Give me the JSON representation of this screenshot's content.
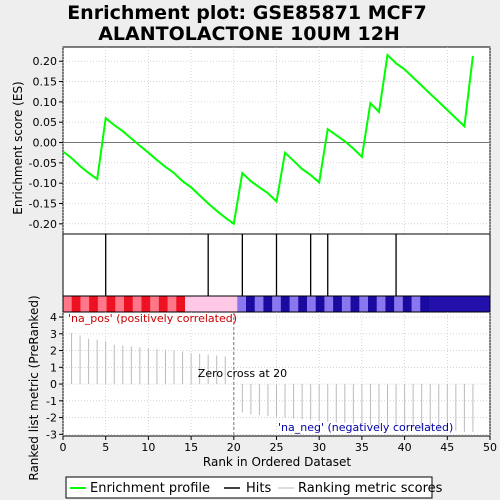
{
  "chart_data": {
    "type": "line",
    "title_lines": [
      "Enrichment plot: GSE85871 MCF7",
      "ALANTOLACTONE 10UM 12H"
    ],
    "top_panel": {
      "ylabel": "Enrichment score (ES)",
      "ylim": [
        -0.225,
        0.235
      ],
      "yticks": [
        0.2,
        0.15,
        0.1,
        0.05,
        0.0,
        -0.05,
        -0.1,
        -0.15,
        -0.2
      ],
      "ytick_labels": [
        "0.20",
        "0.15",
        "0.10",
        "0.05",
        "0.00",
        "-0.05",
        "-0.10",
        "-0.15",
        "-0.20"
      ],
      "series": [
        {
          "name": "Enrichment profile",
          "color": "#00ff00",
          "x": [
            0,
            1,
            2,
            3,
            4,
            5,
            6,
            7,
            8,
            9,
            10,
            11,
            12,
            13,
            14,
            15,
            16,
            17,
            18,
            19,
            20,
            21,
            22,
            23,
            24,
            25,
            26,
            27,
            28,
            29,
            30,
            31,
            32,
            33,
            34,
            35,
            36,
            37,
            38,
            39,
            40,
            41,
            42,
            43,
            44,
            45,
            46,
            47,
            48
          ],
          "y": [
            -0.022,
            -0.038,
            -0.058,
            -0.075,
            -0.09,
            0.06,
            0.043,
            0.028,
            0.01,
            -0.008,
            -0.025,
            -0.043,
            -0.06,
            -0.075,
            -0.095,
            -0.11,
            -0.13,
            -0.15,
            -0.168,
            -0.185,
            -0.2,
            -0.075,
            -0.095,
            -0.11,
            -0.125,
            -0.145,
            -0.025,
            -0.045,
            -0.065,
            -0.08,
            -0.098,
            0.033,
            0.018,
            0.003,
            -0.015,
            -0.035,
            0.097,
            0.075,
            0.215,
            0.195,
            0.18,
            0.16,
            0.14,
            0.12,
            0.1,
            0.08,
            0.06,
            0.04,
            0.213
          ]
        }
      ]
    },
    "hits": {
      "name": "Hits",
      "positions": [
        5,
        17,
        21,
        25,
        29,
        31,
        39
      ],
      "color": "#000000"
    },
    "bottom_panel": {
      "ylabel": "Ranked list metric (PreRanked)",
      "ylim": [
        -3.1,
        4.3
      ],
      "yticks": [
        4,
        3,
        2,
        1,
        0,
        -1,
        -2,
        -3
      ],
      "ytick_labels": [
        "4",
        "3",
        "2",
        "1",
        "0",
        "-1",
        "-2",
        "-3"
      ],
      "xlabel": "Rank in Ordered Dataset",
      "xlim": [
        0,
        50
      ],
      "xticks": [
        0,
        5,
        10,
        15,
        20,
        25,
        30,
        35,
        40,
        45,
        50
      ],
      "xtick_labels": [
        "0",
        "5",
        "10",
        "15",
        "20",
        "25",
        "30",
        "35",
        "40",
        "45",
        "50"
      ],
      "series": [
        {
          "name": "Ranking metric scores",
          "color": "#bbbbbb",
          "x": [
            1,
            2,
            3,
            4,
            5,
            6,
            7,
            8,
            9,
            10,
            11,
            12,
            13,
            14,
            15,
            16,
            17,
            18,
            19,
            21,
            22,
            23,
            24,
            25,
            26,
            27,
            28,
            29,
            30,
            31,
            32,
            33,
            34,
            35,
            36,
            37,
            38,
            39,
            40,
            41,
            42,
            43,
            44,
            45,
            46,
            47,
            48
          ],
          "values": [
            3.05,
            2.9,
            2.7,
            2.65,
            2.55,
            2.35,
            2.3,
            2.25,
            2.2,
            2.15,
            2.1,
            2.05,
            2.0,
            1.95,
            1.85,
            1.8,
            1.75,
            1.7,
            1.65,
            -1.7,
            -1.8,
            -1.85,
            -1.9,
            -1.95,
            -2.0,
            -2.05,
            -2.1,
            -2.15,
            -2.2,
            -2.25,
            -2.3,
            -2.3,
            -2.35,
            -2.4,
            -2.45,
            -2.5,
            -2.5,
            -2.55,
            -2.6,
            -2.6,
            -2.65,
            -2.7,
            -2.75,
            -2.75,
            -2.8,
            -2.85,
            -2.85
          ]
        }
      ],
      "annotations": {
        "pos_label": "'na_pos' (positively correlated)",
        "neg_label": "'na_neg' (negatively correlated)",
        "zero_cross": "Zero cross at 20",
        "zero_cross_x": 20
      }
    },
    "gradient_bar": {
      "n_cells": 49
    },
    "legend": {
      "placement": "bottom",
      "items": [
        {
          "label": "Enrichment profile",
          "color": "#00ff00",
          "style": "thick-line"
        },
        {
          "label": "Hits",
          "color": "#000000",
          "style": "line"
        },
        {
          "label": "Ranking metric scores",
          "color": "#bbbbbb",
          "style": "thin-line"
        }
      ]
    },
    "colors": {
      "pos_text": "#cc0000",
      "neg_text": "#0000aa",
      "grid": "#bbbbbb",
      "zero_line": "#777777"
    },
    "grid": true
  }
}
